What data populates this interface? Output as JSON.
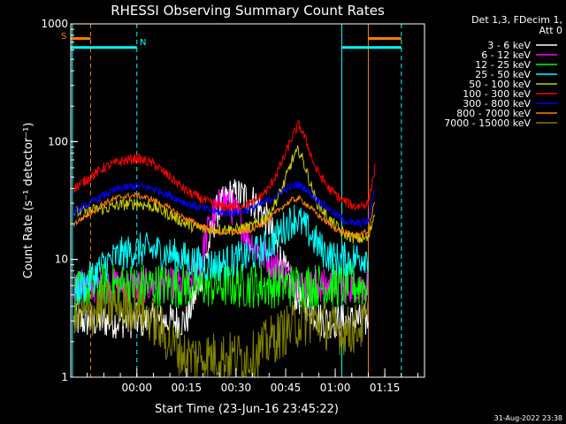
{
  "chart_data": {
    "type": "line",
    "title": "RHESSI Observing Summary Count Rates",
    "xlabel": "Start Time (23-Jun-16 23:45:22)",
    "ylabel": "Count Rate (s⁻¹ detector⁻¹)",
    "y_scale": "log",
    "ylim": [
      1,
      1000
    ],
    "xlim": [
      -20,
      87
    ],
    "x_unit": "minutes from 00:00",
    "x_ticks": [
      {
        "label": "00:00",
        "value": 0
      },
      {
        "label": "00:15",
        "value": 15
      },
      {
        "label": "00:30",
        "value": 30
      },
      {
        "label": "00:45",
        "value": 45
      },
      {
        "label": "01:00",
        "value": 60
      },
      {
        "label": "01:15",
        "value": 75
      }
    ],
    "y_ticks": [
      {
        "label": "1",
        "value": 1
      },
      {
        "label": "10",
        "value": 10
      },
      {
        "label": "100",
        "value": 100
      },
      {
        "label": "1000",
        "value": 1000
      }
    ],
    "legend_header": [
      "Det 1,3, FDecim 1,",
      "Att 0"
    ],
    "legend_position": "right",
    "series": [
      {
        "name": "3 - 6 keV",
        "color": "#ffffff",
        "x": [
          -19,
          -18,
          -10,
          -5,
          0,
          5,
          10,
          15,
          20,
          24,
          28,
          32,
          36,
          40,
          44,
          48,
          52,
          56,
          60,
          64,
          68,
          70
        ],
        "y": [
          3,
          3,
          3,
          3,
          3,
          3,
          3,
          3,
          8,
          25,
          35,
          35,
          30,
          20,
          9,
          5,
          4,
          3,
          3,
          3,
          3,
          3
        ]
      },
      {
        "name": "6 - 12 keV",
        "color": "#ff00ff",
        "x": [
          -19,
          -18,
          -10,
          -5,
          0,
          5,
          10,
          15,
          19,
          22,
          26,
          30,
          34,
          38,
          42,
          46,
          50,
          55,
          60,
          65,
          70
        ],
        "y": [
          6,
          6,
          6,
          6,
          6,
          6,
          6,
          6,
          9,
          20,
          33,
          25,
          15,
          11,
          9,
          7,
          6,
          6,
          6,
          6,
          6
        ]
      },
      {
        "name": "12 - 25 keV",
        "color": "#00ff00",
        "x": [
          -19,
          -10,
          -5,
          0,
          10,
          20,
          30,
          40,
          50,
          60,
          70
        ],
        "y": [
          5,
          6,
          6,
          6,
          6,
          6,
          6,
          6,
          6,
          6,
          6
        ]
      },
      {
        "name": "25 - 50 keV",
        "color": "#00ffff",
        "x": [
          -19,
          -10,
          -5,
          0,
          5,
          10,
          15,
          20,
          25,
          30,
          35,
          40,
          44,
          48,
          52,
          56,
          60,
          65,
          70
        ],
        "y": [
          5,
          9,
          11,
          12,
          12,
          11,
          10,
          9,
          9,
          10,
          11,
          13,
          18,
          23,
          17,
          12,
          10,
          10,
          11
        ]
      },
      {
        "name": "50 - 100 keV",
        "color": "#cccc00",
        "x": [
          -19,
          -10,
          -5,
          0,
          5,
          10,
          15,
          20,
          25,
          30,
          35,
          40,
          44,
          47,
          49,
          51,
          54,
          58,
          62,
          66,
          70,
          72
        ],
        "y": [
          25,
          27,
          29,
          30,
          28,
          24,
          20,
          18,
          18,
          18,
          19,
          24,
          40,
          70,
          85,
          60,
          32,
          22,
          17,
          15,
          15,
          26
        ]
      },
      {
        "name": "100 - 300 keV",
        "color": "#ff0000",
        "x": [
          -19,
          -10,
          -5,
          0,
          5,
          10,
          15,
          20,
          25,
          30,
          35,
          40,
          44,
          47,
          49,
          51,
          54,
          58,
          62,
          66,
          70,
          72
        ],
        "y": [
          40,
          60,
          68,
          72,
          65,
          50,
          38,
          32,
          28,
          28,
          30,
          40,
          68,
          110,
          140,
          105,
          60,
          40,
          32,
          28,
          30,
          60
        ]
      },
      {
        "name": "300 - 800 keV",
        "color": "#0000ff",
        "x": [
          -19,
          -10,
          -5,
          0,
          5,
          10,
          15,
          20,
          25,
          30,
          35,
          40,
          44,
          47,
          49,
          51,
          54,
          58,
          62,
          66,
          70,
          72
        ],
        "y": [
          25,
          35,
          40,
          42,
          40,
          35,
          30,
          27,
          25,
          25,
          27,
          32,
          38,
          42,
          43,
          40,
          33,
          27,
          22,
          20,
          21,
          40
        ]
      },
      {
        "name": "800 - 7000 keV",
        "color": "#ff8000",
        "x": [
          -19,
          -10,
          -5,
          0,
          5,
          10,
          15,
          20,
          25,
          30,
          35,
          40,
          44,
          47,
          49,
          51,
          54,
          58,
          62,
          66,
          70,
          72
        ],
        "y": [
          20,
          30,
          34,
          35,
          32,
          27,
          22,
          19,
          17,
          17,
          18,
          22,
          28,
          32,
          33,
          30,
          25,
          20,
          17,
          16,
          17,
          32
        ]
      },
      {
        "name": "7000 - 15000 keV",
        "color": "#808000",
        "x": [
          -19,
          -10,
          -5,
          0,
          5,
          10,
          15,
          20,
          25,
          30,
          35,
          40,
          45,
          50,
          55,
          60,
          65,
          70
        ],
        "y": [
          3,
          4,
          4,
          4,
          3,
          2,
          1.5,
          1.5,
          1.5,
          1.5,
          1.5,
          2,
          2.5,
          3,
          3,
          2.5,
          2.5,
          3
        ]
      }
    ],
    "annotations": [
      {
        "label": "S",
        "color": "#ff8000"
      },
      {
        "label": "N",
        "color": "#00ffff"
      }
    ],
    "flag_bars": [
      {
        "label": "S",
        "color": "#ff8000",
        "value": 750,
        "x_start": -20,
        "x_end": -14
      },
      {
        "label": "S",
        "color": "#ff8000",
        "value": 750,
        "x_start": 70,
        "x_end": 80
      },
      {
        "label": "N",
        "color": "#00ffff",
        "value": 630,
        "x_start": -20,
        "x_end": 0
      },
      {
        "label": "N",
        "color": "#00ffff",
        "value": 630,
        "x_start": 62,
        "x_end": 80
      }
    ],
    "vertical_lines": [
      {
        "x": -19.5,
        "color": "#00ffff",
        "dashed": false
      },
      {
        "x": -14,
        "color": "#ff8000",
        "dashed": true
      },
      {
        "x": 0,
        "color": "#00ffff",
        "dashed": true
      },
      {
        "x": 62,
        "color": "#00ffff",
        "dashed": false
      },
      {
        "x": 70,
        "color": "#ff8000",
        "dashed": false
      },
      {
        "x": 80,
        "color": "#00ffff",
        "dashed": true
      }
    ],
    "timestamp": "31-Aug-2022 23:38"
  }
}
